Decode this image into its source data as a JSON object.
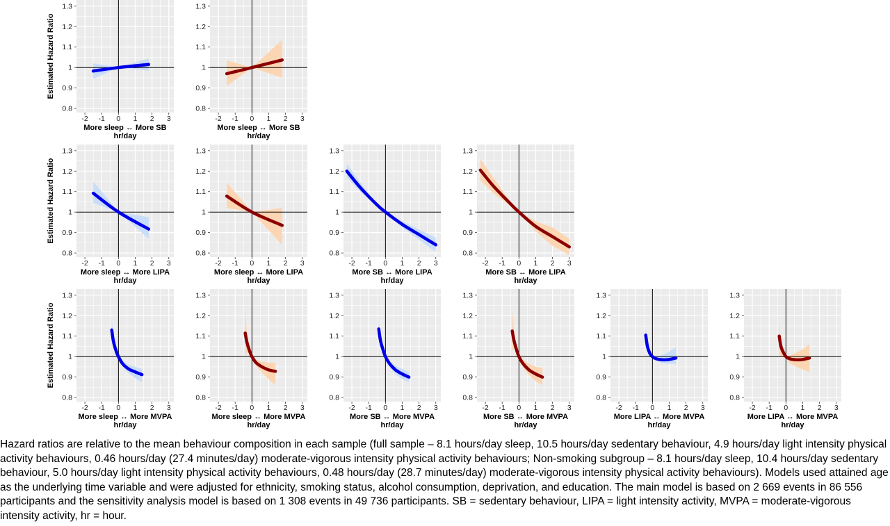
{
  "caption": "Hazard ratios are relative to the mean behaviour composition in each sample (full sample – 8.1 hours/day sleep, 10.5 hours/day sedentary behaviour, 4.9 hours/day light intensity physical activity behaviours, 0.46 hours/day (27.4 minutes/day) moderate-vigorous intensity physical activity behaviours; Non-smoking subgroup – 8.1 hours/day sleep, 10.4 hours/day sedentary behaviour, 5.0 hours/day light intensity physical activity behaviours, 0.48 hours/day (28.7 minutes/day) moderate-vigorous intensity physical activity behaviours). Models used attained age as the underlying time variable and were adjusted for ethnicity, smoking status, alcohol consumption, deprivation, and education. The main model is based on 2 669 events in 86 556 participants and the sensitivity analysis model is based on 1 308 events in 49 736 participants. SB = sedentary behaviour, LIPA = light intensity activity, MVPA = moderate-vigorous intensity activity, hr = hour.",
  "colors": {
    "panel_bg": "#ebebeb",
    "grid": "#ffffff",
    "main_line": "#0000e6",
    "main_ribbon": "#c6dcfb",
    "sens_line": "#8b0000",
    "sens_ribbon": "#fdd4b0"
  },
  "chart_data": [
    {
      "type": "line",
      "row": 0,
      "col": 0,
      "style": "main",
      "xlabel": "More sleep ↔ More SB",
      "xunit": "hr/day",
      "ylabel": "Estimated Hazard Ratio",
      "xlim": [
        -2.5,
        3.3
      ],
      "ylim": [
        0.78,
        1.33
      ],
      "xticks": [
        -2,
        -1,
        0,
        1,
        2,
        3
      ],
      "yticks": [
        0.8,
        0.9,
        1,
        1.1,
        1.2,
        1.3
      ],
      "ytick_labels": [
        "0.8",
        "0.9",
        "1",
        "1.1",
        "1.2",
        "1.3"
      ],
      "x": [
        -1.5,
        0,
        1.8
      ],
      "y": [
        0.983,
        1.0,
        1.015
      ],
      "lower": [
        0.945,
        1.0,
        0.985
      ],
      "upper": [
        1.02,
        1.0,
        1.045
      ]
    },
    {
      "type": "line",
      "row": 0,
      "col": 1,
      "style": "sens",
      "xlabel": "More sleep ↔ More SB",
      "xunit": "hr/day",
      "ylabel": "",
      "xlim": [
        -2.5,
        3.3
      ],
      "ylim": [
        0.78,
        1.33
      ],
      "xticks": [
        -2,
        -1,
        0,
        1,
        2,
        3
      ],
      "yticks": [
        0.8,
        0.9,
        1,
        1.1,
        1.2,
        1.3
      ],
      "ytick_labels": [
        "0.8",
        "0.9",
        "1",
        "1.1",
        "1.2",
        "1.3"
      ],
      "x": [
        -1.5,
        0,
        1.8
      ],
      "y": [
        0.97,
        1.0,
        1.037
      ],
      "lower": [
        0.91,
        1.0,
        0.95
      ],
      "upper": [
        1.035,
        1.0,
        1.135
      ]
    },
    {
      "type": "line",
      "row": 1,
      "col": 0,
      "style": "main",
      "xlabel": "More sleep ↔ More LIPA",
      "xunit": "hr/day",
      "ylabel": "Estimated Hazard Ratio",
      "xlim": [
        -2.5,
        3.3
      ],
      "ylim": [
        0.78,
        1.33
      ],
      "xticks": [
        -2,
        -1,
        0,
        1,
        2,
        3
      ],
      "yticks": [
        0.8,
        0.9,
        1,
        1.1,
        1.2,
        1.3
      ],
      "ytick_labels": [
        "0.8",
        "0.9",
        "1",
        "1.1",
        "1.2",
        "1.3"
      ],
      "x": [
        -1.5,
        0,
        1.8
      ],
      "y": [
        1.092,
        1.0,
        0.917
      ],
      "lower": [
        1.045,
        1.0,
        0.87
      ],
      "upper": [
        1.15,
        1.0,
        0.975
      ]
    },
    {
      "type": "line",
      "row": 1,
      "col": 1,
      "style": "sens",
      "xlabel": "More sleep ↔ More LIPA",
      "xunit": "hr/day",
      "ylabel": "",
      "xlim": [
        -2.5,
        3.3
      ],
      "ylim": [
        0.78,
        1.33
      ],
      "xticks": [
        -2,
        -1,
        0,
        1,
        2,
        3
      ],
      "yticks": [
        0.8,
        0.9,
        1,
        1.1,
        1.2,
        1.3
      ],
      "ytick_labels": [
        "0.8",
        "0.9",
        "1",
        "1.1",
        "1.2",
        "1.3"
      ],
      "x": [
        -1.5,
        0,
        1.8
      ],
      "y": [
        1.078,
        1.0,
        0.935
      ],
      "lower": [
        1.02,
        1.0,
        0.84
      ],
      "upper": [
        1.145,
        1.0,
        1.02
      ]
    },
    {
      "type": "line",
      "row": 1,
      "col": 2,
      "style": "main",
      "xlabel": "More SB ↔ More LIPA",
      "xunit": "hr/day",
      "ylabel": "",
      "xlim": [
        -2.5,
        3.3
      ],
      "ylim": [
        0.78,
        1.33
      ],
      "xticks": [
        -2,
        -1,
        0,
        1,
        2,
        3
      ],
      "yticks": [
        0.8,
        0.9,
        1,
        1.1,
        1.2,
        1.3
      ],
      "ytick_labels": [
        "0.8",
        "0.9",
        "1",
        "1.1",
        "1.2",
        "1.3"
      ],
      "x": [
        -2.3,
        -1.5,
        -0.5,
        0,
        1,
        2,
        3
      ],
      "y": [
        1.2,
        1.12,
        1.035,
        1.0,
        0.94,
        0.89,
        0.84
      ],
      "lower": [
        1.17,
        1.1,
        1.03,
        1.0,
        0.925,
        0.865,
        0.805
      ],
      "upper": [
        1.235,
        1.145,
        1.04,
        1.0,
        0.955,
        0.915,
        0.875
      ]
    },
    {
      "type": "line",
      "row": 1,
      "col": 3,
      "style": "sens",
      "xlabel": "More SB ↔ More LIPA",
      "xunit": "hr/day",
      "ylabel": "",
      "xlim": [
        -2.5,
        3.3
      ],
      "ylim": [
        0.78,
        1.33
      ],
      "xticks": [
        -2,
        -1,
        0,
        1,
        2,
        3
      ],
      "yticks": [
        0.8,
        0.9,
        1,
        1.1,
        1.2,
        1.3
      ],
      "ytick_labels": [
        "0.8",
        "0.9",
        "1",
        "1.1",
        "1.2",
        "1.3"
      ],
      "x": [
        -2.3,
        -1.5,
        -0.5,
        0,
        1,
        2,
        3
      ],
      "y": [
        1.205,
        1.125,
        1.04,
        1.0,
        0.93,
        0.88,
        0.83
      ],
      "lower": [
        1.155,
        1.09,
        1.03,
        1.0,
        0.905,
        0.835,
        0.79
      ],
      "upper": [
        1.26,
        1.165,
        1.05,
        1.0,
        0.955,
        0.925,
        0.87
      ]
    },
    {
      "type": "line",
      "row": 2,
      "col": 0,
      "style": "main",
      "xlabel": "More sleep ↔ More MVPA",
      "xunit": "hr/day",
      "ylabel": "Estimated Hazard Ratio",
      "xlim": [
        -2.5,
        3.3
      ],
      "ylim": [
        0.78,
        1.33
      ],
      "xticks": [
        -2,
        -1,
        0,
        1,
        2,
        3
      ],
      "yticks": [
        0.8,
        0.9,
        1,
        1.1,
        1.2,
        1.3
      ],
      "ytick_labels": [
        "0.8",
        "0.9",
        "1",
        "1.1",
        "1.2",
        "1.3"
      ],
      "x": [
        -0.4,
        -0.3,
        -0.15,
        0,
        0.25,
        0.6,
        1.0,
        1.4
      ],
      "y": [
        1.13,
        1.075,
        1.03,
        1.0,
        0.965,
        0.94,
        0.925,
        0.912
      ],
      "lower": [
        1.1,
        1.06,
        1.02,
        1.0,
        0.95,
        0.92,
        0.895,
        0.875
      ],
      "upper": [
        1.18,
        1.095,
        1.04,
        1.0,
        0.98,
        0.96,
        0.95,
        0.94
      ]
    },
    {
      "type": "line",
      "row": 2,
      "col": 1,
      "style": "sens",
      "xlabel": "More sleep ↔ More MVPA",
      "xunit": "hr/day",
      "ylabel": "",
      "xlim": [
        -2.5,
        3.3
      ],
      "ylim": [
        0.78,
        1.33
      ],
      "xticks": [
        -2,
        -1,
        0,
        1,
        2,
        3
      ],
      "yticks": [
        0.8,
        0.9,
        1,
        1.1,
        1.2,
        1.3
      ],
      "ytick_labels": [
        "0.8",
        "0.9",
        "1",
        "1.1",
        "1.2",
        "1.3"
      ],
      "x": [
        -0.4,
        -0.3,
        -0.15,
        0,
        0.25,
        0.6,
        1.0,
        1.4
      ],
      "y": [
        1.115,
        1.07,
        1.03,
        1.0,
        0.97,
        0.95,
        0.935,
        0.928
      ],
      "lower": [
        1.0,
        1.02,
        1.015,
        1.0,
        0.955,
        0.92,
        0.89,
        0.86
      ],
      "upper": [
        1.23,
        1.12,
        1.05,
        1.0,
        0.985,
        0.975,
        0.97,
        0.97
      ]
    },
    {
      "type": "line",
      "row": 2,
      "col": 2,
      "style": "main",
      "xlabel": "More SB ↔ More MVPA",
      "xunit": "hr/day",
      "ylabel": "",
      "xlim": [
        -2.5,
        3.3
      ],
      "ylim": [
        0.78,
        1.33
      ],
      "xticks": [
        -2,
        -1,
        0,
        1,
        2,
        3
      ],
      "yticks": [
        0.8,
        0.9,
        1,
        1.1,
        1.2,
        1.3
      ],
      "ytick_labels": [
        "0.8",
        "0.9",
        "1",
        "1.1",
        "1.2",
        "1.3"
      ],
      "x": [
        -0.4,
        -0.3,
        -0.15,
        0,
        0.25,
        0.6,
        1.0,
        1.4
      ],
      "y": [
        1.135,
        1.08,
        1.035,
        1.0,
        0.965,
        0.935,
        0.915,
        0.9
      ],
      "lower": [
        1.09,
        1.06,
        1.025,
        1.0,
        0.95,
        0.915,
        0.89,
        0.875
      ],
      "upper": [
        1.18,
        1.1,
        1.045,
        1.0,
        0.98,
        0.955,
        0.94,
        0.925
      ]
    },
    {
      "type": "line",
      "row": 2,
      "col": 3,
      "style": "sens",
      "xlabel": "More SB ↔ More MVPA",
      "xunit": "hr/day",
      "ylabel": "",
      "xlim": [
        -2.5,
        3.3
      ],
      "ylim": [
        0.78,
        1.33
      ],
      "xticks": [
        -2,
        -1,
        0,
        1,
        2,
        3
      ],
      "yticks": [
        0.8,
        0.9,
        1,
        1.1,
        1.2,
        1.3
      ],
      "ytick_labels": [
        "0.8",
        "0.9",
        "1",
        "1.1",
        "1.2",
        "1.3"
      ],
      "x": [
        -0.4,
        -0.3,
        -0.15,
        0,
        0.25,
        0.6,
        1.0,
        1.4
      ],
      "y": [
        1.125,
        1.08,
        1.035,
        1.0,
        0.965,
        0.935,
        0.915,
        0.9
      ],
      "lower": [
        1.03,
        1.04,
        1.02,
        1.0,
        0.945,
        0.91,
        0.88,
        0.86
      ],
      "upper": [
        1.23,
        1.13,
        1.05,
        1.0,
        0.985,
        0.965,
        0.95,
        0.945
      ]
    },
    {
      "type": "line",
      "row": 2,
      "col": 4,
      "style": "main",
      "xlabel": "More LIPA ↔ More MVPA",
      "xunit": "hr/day",
      "ylabel": "",
      "xlim": [
        -2.5,
        3.3
      ],
      "ylim": [
        0.78,
        1.33
      ],
      "xticks": [
        -2,
        -1,
        0,
        1,
        2,
        3
      ],
      "yticks": [
        0.8,
        0.9,
        1,
        1.1,
        1.2,
        1.3
      ],
      "ytick_labels": [
        "0.8",
        "0.9",
        "1",
        "1.1",
        "1.2",
        "1.3"
      ],
      "x": [
        -0.4,
        -0.3,
        -0.15,
        0,
        0.2,
        0.5,
        0.9,
        1.4
      ],
      "y": [
        1.105,
        1.05,
        1.015,
        1.0,
        0.99,
        0.985,
        0.985,
        0.993
      ],
      "lower": [
        1.06,
        1.03,
        1.005,
        1.0,
        0.985,
        0.97,
        0.965,
        0.965
      ],
      "upper": [
        1.14,
        1.07,
        1.025,
        1.0,
        1.0,
        1.005,
        1.02,
        1.045
      ]
    },
    {
      "type": "line",
      "row": 2,
      "col": 5,
      "style": "sens",
      "xlabel": "More LIPA ↔ More MVPA",
      "xunit": "hr/day",
      "ylabel": "",
      "xlim": [
        -2.5,
        3.3
      ],
      "ylim": [
        0.78,
        1.33
      ],
      "xticks": [
        -2,
        -1,
        0,
        1,
        2,
        3
      ],
      "yticks": [
        0.8,
        0.9,
        1,
        1.1,
        1.2,
        1.3
      ],
      "ytick_labels": [
        "0.8",
        "0.9",
        "1",
        "1.1",
        "1.2",
        "1.3"
      ],
      "x": [
        -0.4,
        -0.3,
        -0.15,
        0,
        0.2,
        0.5,
        0.9,
        1.4
      ],
      "y": [
        1.1,
        1.05,
        1.02,
        1.0,
        0.99,
        0.985,
        0.985,
        0.993
      ],
      "lower": [
        1.01,
        1.0,
        0.995,
        1.0,
        0.97,
        0.955,
        0.94,
        0.925
      ],
      "upper": [
        1.17,
        1.08,
        1.04,
        1.0,
        1.005,
        1.015,
        1.03,
        1.06
      ]
    }
  ]
}
